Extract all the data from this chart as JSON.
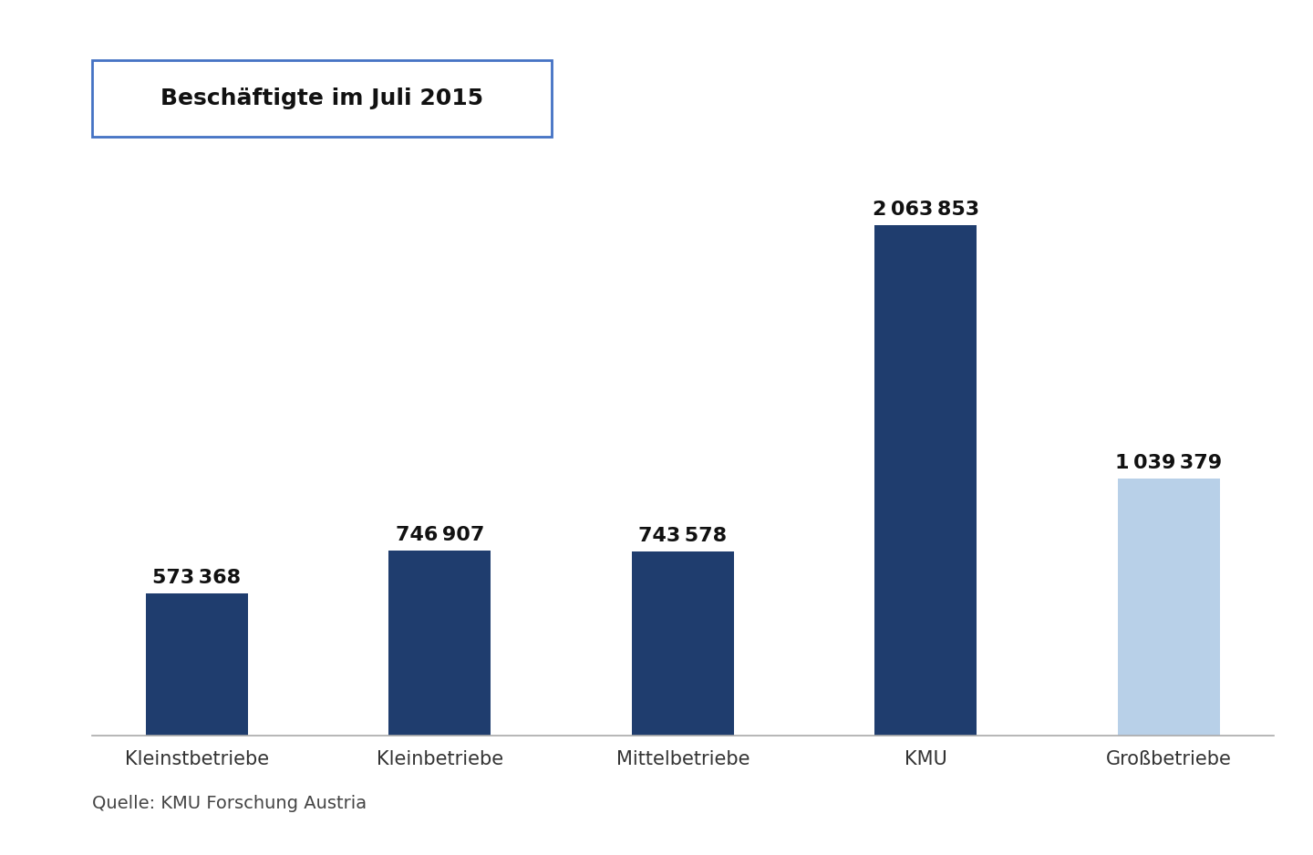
{
  "categories": [
    "Kleinstbetriebe",
    "Kleinbetriebe",
    "Mittelbetriebe",
    "KMU",
    "Großbetriebe"
  ],
  "values": [
    573368,
    746907,
    743578,
    2063853,
    1039379
  ],
  "bar_colors": [
    "#1f3d6e",
    "#1f3d6e",
    "#1f3d6e",
    "#1f3d6e",
    "#b8d0e8"
  ],
  "bar_labels": [
    "573 368",
    "746 907",
    "743 578",
    "2 063 853",
    "1 039 379"
  ],
  "title": "Beschäftigte im Juli 2015",
  "source": "Quelle: KMU Forschung Austria",
  "background_color": "#ffffff",
  "title_fontsize": 18,
  "label_fontsize": 16,
  "tick_fontsize": 15,
  "source_fontsize": 14,
  "bar_width": 0.42,
  "ylim": [
    0,
    2350000
  ],
  "title_box_color": "#4472c4",
  "spine_color": "#aaaaaa"
}
